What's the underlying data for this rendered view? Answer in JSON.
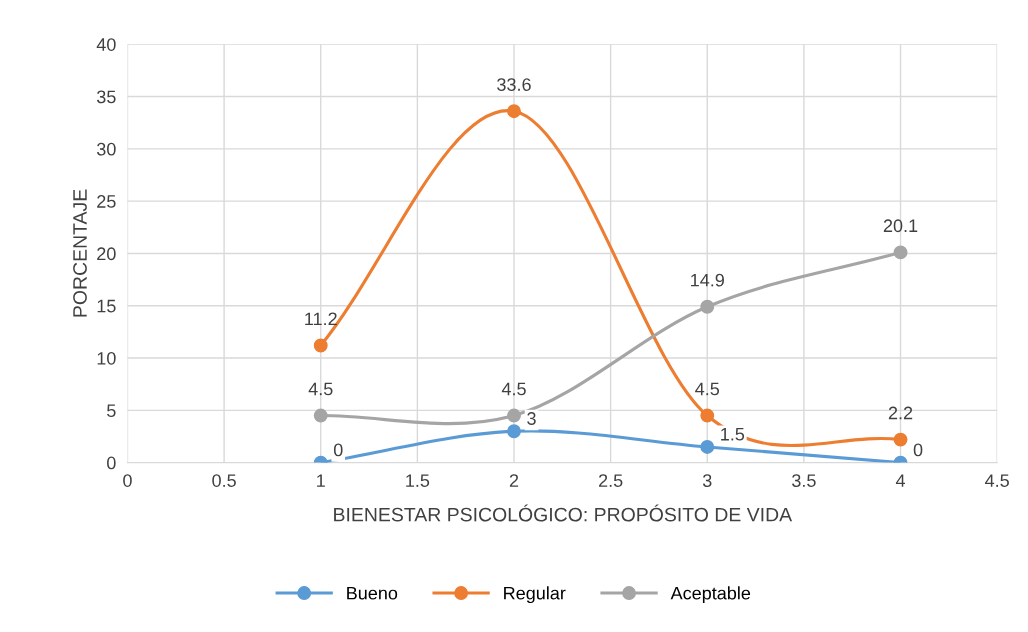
{
  "chart_data": {
    "type": "line",
    "xlabel": "BIENESTAR PSICOLÓGICO: PROPÓSITO DE VIDA",
    "ylabel": "PORCENTAJE",
    "x": [
      1,
      2,
      3,
      4
    ],
    "series": [
      {
        "name": "Bueno",
        "color": "#5b9bd5",
        "values": [
          0,
          3,
          1.5,
          0
        ]
      },
      {
        "name": "Regular",
        "color": "#ed7d31",
        "values": [
          11.2,
          33.6,
          4.5,
          2.2
        ]
      },
      {
        "name": "Aceptable",
        "color": "#a5a5a5",
        "values": [
          4.5,
          4.5,
          14.9,
          20.1
        ]
      }
    ],
    "xlim": [
      0,
      4.5
    ],
    "xticks": [
      0,
      0.5,
      1,
      1.5,
      2,
      2.5,
      3,
      3.5,
      4,
      4.5
    ],
    "ylim": [
      0,
      40
    ],
    "yticks": [
      0,
      5,
      10,
      15,
      20,
      25,
      30,
      35,
      40
    ],
    "grid": true,
    "legend": "bottom",
    "marker": "circle",
    "line_style": "solid",
    "data_labels": true
  }
}
